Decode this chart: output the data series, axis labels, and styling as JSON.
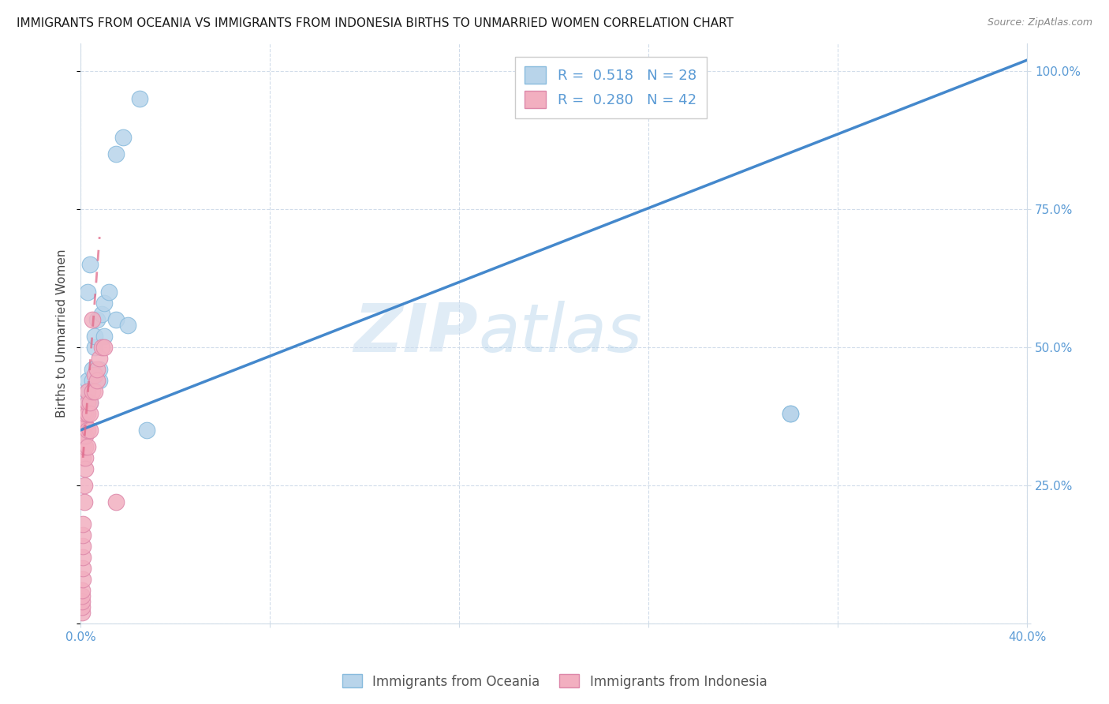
{
  "title": "IMMIGRANTS FROM OCEANIA VS IMMIGRANTS FROM INDONESIA BIRTHS TO UNMARRIED WOMEN CORRELATION CHART",
  "source": "Source: ZipAtlas.com",
  "ylabel": "Births to Unmarried Women",
  "legend1_r": "0.518",
  "legend1_n": "28",
  "legend2_r": "0.280",
  "legend2_n": "42",
  "blue_color": "#b8d4ea",
  "pink_color": "#f2afc0",
  "line_blue": "#4488cc",
  "line_pink": "#e06888",
  "watermark_zip": "ZIP",
  "watermark_atlas": "atlas",
  "xlim": [
    0.0,
    0.4
  ],
  "ylim": [
    0.0,
    1.05
  ],
  "oceania_x": [
    0.001,
    0.001,
    0.002,
    0.002,
    0.003,
    0.003,
    0.003,
    0.004,
    0.004,
    0.005,
    0.005,
    0.006,
    0.006,
    0.007,
    0.008,
    0.008,
    0.009,
    0.01,
    0.01,
    0.012,
    0.015,
    0.015,
    0.018,
    0.02,
    0.025,
    0.028,
    0.3,
    0.3
  ],
  "oceania_y": [
    0.35,
    0.37,
    0.38,
    0.4,
    0.42,
    0.44,
    0.6,
    0.4,
    0.65,
    0.44,
    0.46,
    0.5,
    0.52,
    0.55,
    0.44,
    0.46,
    0.56,
    0.52,
    0.58,
    0.6,
    0.55,
    0.85,
    0.88,
    0.54,
    0.95,
    0.35,
    0.38,
    0.38
  ],
  "indonesia_x": [
    0.0005,
    0.0005,
    0.0005,
    0.0007,
    0.0007,
    0.0008,
    0.0009,
    0.001,
    0.001,
    0.001,
    0.001,
    0.001,
    0.001,
    0.001,
    0.001,
    0.001,
    0.0015,
    0.0015,
    0.002,
    0.002,
    0.002,
    0.002,
    0.002,
    0.002,
    0.003,
    0.003,
    0.003,
    0.003,
    0.003,
    0.004,
    0.004,
    0.004,
    0.005,
    0.005,
    0.006,
    0.006,
    0.007,
    0.007,
    0.008,
    0.009,
    0.01,
    0.015
  ],
  "indonesia_y": [
    0.02,
    0.03,
    0.04,
    0.05,
    0.06,
    0.08,
    0.1,
    0.12,
    0.14,
    0.16,
    0.18,
    0.3,
    0.32,
    0.34,
    0.36,
    0.38,
    0.22,
    0.25,
    0.28,
    0.3,
    0.32,
    0.34,
    0.36,
    0.38,
    0.32,
    0.35,
    0.38,
    0.4,
    0.42,
    0.35,
    0.38,
    0.4,
    0.42,
    0.55,
    0.42,
    0.45,
    0.44,
    0.46,
    0.48,
    0.5,
    0.5,
    0.22
  ],
  "blue_line_x": [
    0.0,
    0.4
  ],
  "blue_line_y": [
    0.35,
    1.02
  ],
  "pink_line_x": [
    0.001,
    0.008
  ],
  "pink_line_y": [
    0.3,
    0.7
  ]
}
